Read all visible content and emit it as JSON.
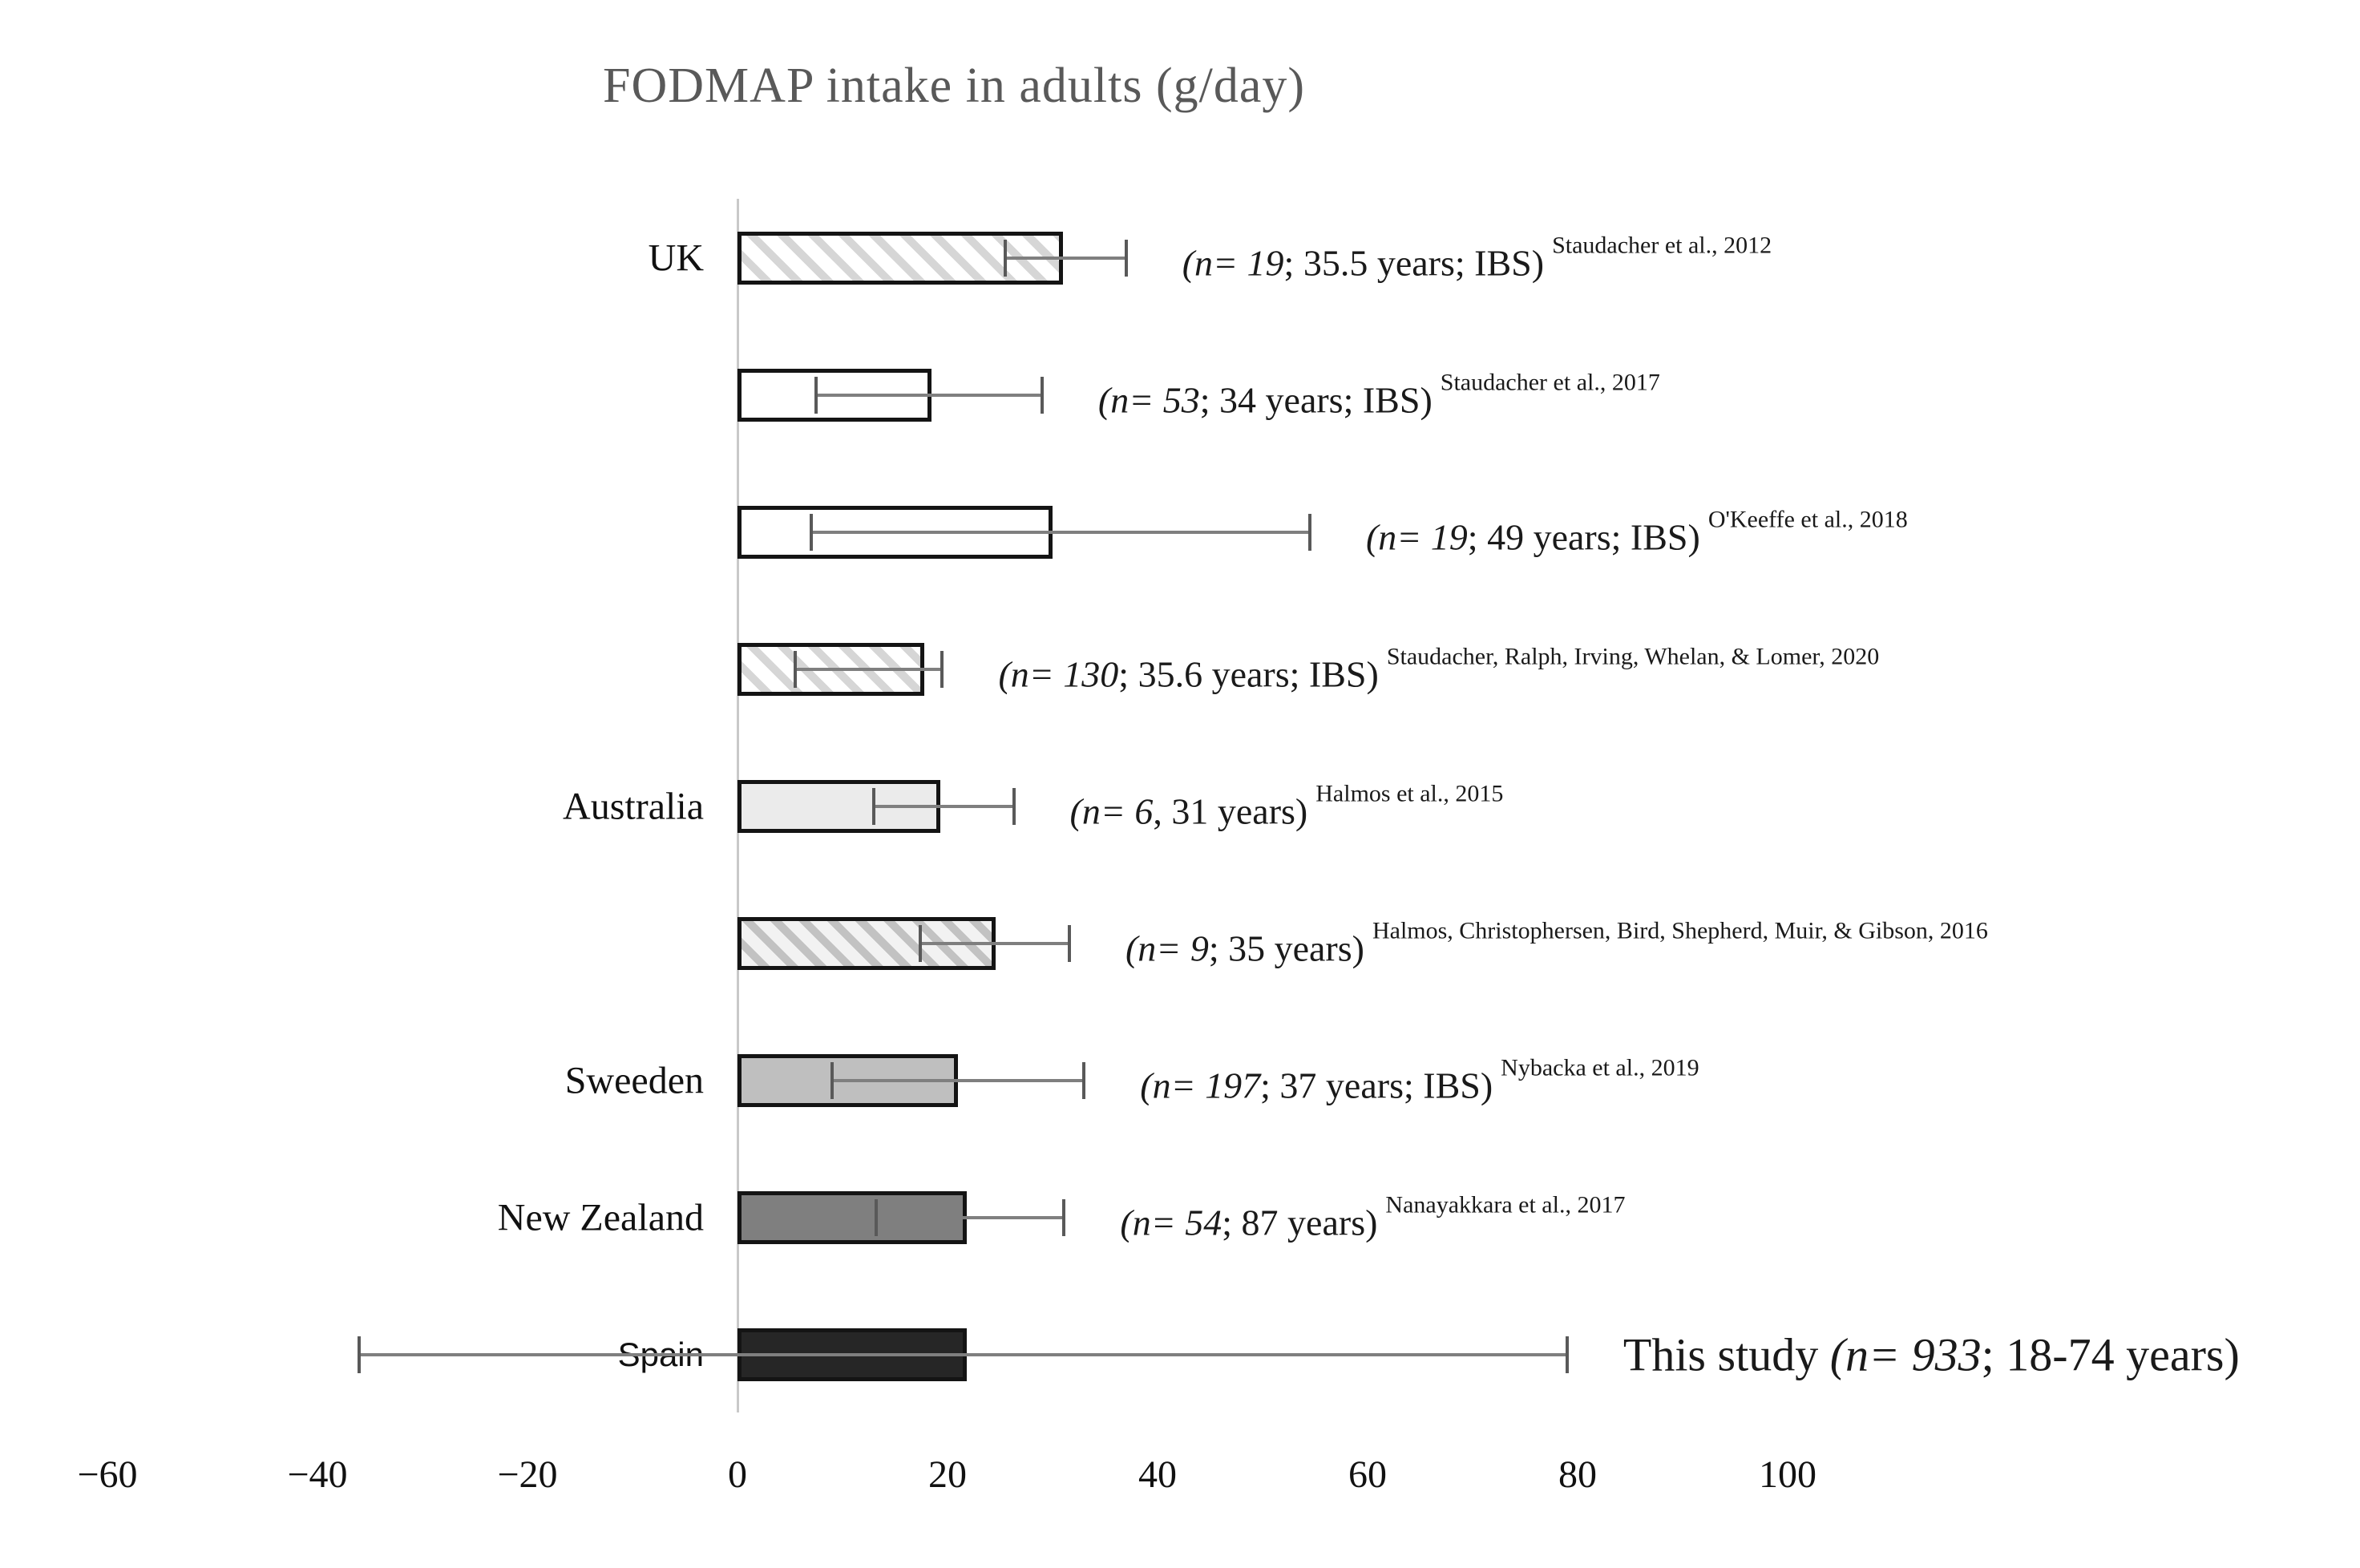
{
  "chart_data": {
    "type": "bar",
    "orientation": "horizontal",
    "title": "FODMAP intake in adults (g/day)",
    "xlabel": "",
    "ylabel": "",
    "unit": "g/day",
    "xlim": [
      -60,
      100
    ],
    "x_ticks": [
      -60,
      -40,
      -20,
      0,
      20,
      40,
      60,
      80,
      100
    ],
    "x_tick_labels": [
      "−60",
      "−40",
      "−20",
      "0",
      "20",
      "40",
      "60",
      "80",
      "100"
    ],
    "grid": false,
    "legend": "none",
    "colors": {
      "bar_border": "#141414",
      "error_bar": "#7f7f7f",
      "axis_line": "#c9c9c9",
      "title_text": "#595959",
      "hatch_stripe": "#d6d6d6",
      "hatch_gray_stripe": "#c2c2c2"
    },
    "rows": [
      {
        "country": "UK",
        "country_font": "serif",
        "value": 31,
        "error_low": 25.5,
        "error_high": 37,
        "fill": "hatch",
        "note_prefix": "",
        "note_italic": "(n= 19",
        "note_rest": "; 35.5 years; IBS)",
        "ref": "Staudacher et al., 2012",
        "large_note": false
      },
      {
        "country": "",
        "country_font": "serif",
        "value": 18.5,
        "error_low": 7.5,
        "error_high": 29,
        "fill": "#ffffff",
        "note_prefix": "",
        "note_italic": "(n= 53",
        "note_rest": "; 34 years; IBS)",
        "ref": "Staudacher et al., 2017",
        "large_note": false
      },
      {
        "country": "",
        "country_font": "serif",
        "value": 30,
        "error_low": 7,
        "error_high": 54.5,
        "fill": "#ffffff",
        "note_prefix": "",
        "note_italic": "(n= 19",
        "note_rest": "; 49 years; IBS)",
        "ref": "O'Keeffe et al., 2018",
        "large_note": false
      },
      {
        "country": "",
        "country_font": "serif",
        "value": 17.8,
        "error_low": 5.5,
        "error_high": 19.5,
        "fill": "hatch",
        "note_prefix": "",
        "note_italic": "(n= 130",
        "note_rest": "; 35.6 years; IBS)",
        "ref": "Staudacher, Ralph, Irving, Whelan, & Lomer, 2020",
        "large_note": false
      },
      {
        "country": "Australia",
        "country_font": "serif",
        "value": 19.3,
        "error_low": 13,
        "error_high": 26.3,
        "fill": "#ebebeb",
        "note_prefix": "",
        "note_italic": "(n= 6",
        "note_rest": ", 31 years)",
        "ref": "Halmos et al., 2015",
        "large_note": false
      },
      {
        "country": "",
        "country_font": "serif",
        "value": 24.6,
        "error_low": 17.4,
        "error_high": 31.6,
        "fill": "hatch-gray",
        "note_prefix": "",
        "note_italic": "(n= 9",
        "note_rest": "; 35 years)",
        "ref": "Halmos, Christophersen, Bird, Shepherd, Muir, & Gibson, 2016",
        "large_note": false
      },
      {
        "country": "Sweeden",
        "country_font": "serif",
        "value": 21,
        "error_low": 9,
        "error_high": 33,
        "fill": "#bfbfbf",
        "note_prefix": "",
        "note_italic": "(n= 197",
        "note_rest": "; 37 years; IBS)",
        "ref": "Nybacka et al., 2019",
        "large_note": false
      },
      {
        "country": "New Zealand",
        "country_font": "serif",
        "value": 21.8,
        "error_low": 13.2,
        "error_high": 31.1,
        "fill": "#7f7f7f",
        "note_prefix": "",
        "note_italic": "(n= 54",
        "note_rest": "; 87 years)",
        "ref": "Nanayakkara et al., 2017",
        "large_note": false
      },
      {
        "country": "Spain",
        "country_font": "sans",
        "value": 21.8,
        "error_low": -36,
        "error_high": 79,
        "fill": "#262626",
        "note_prefix": "This study ",
        "note_italic": "(n= 933",
        "note_rest": "; 18-74 years)",
        "ref": "",
        "large_note": true
      }
    ]
  }
}
